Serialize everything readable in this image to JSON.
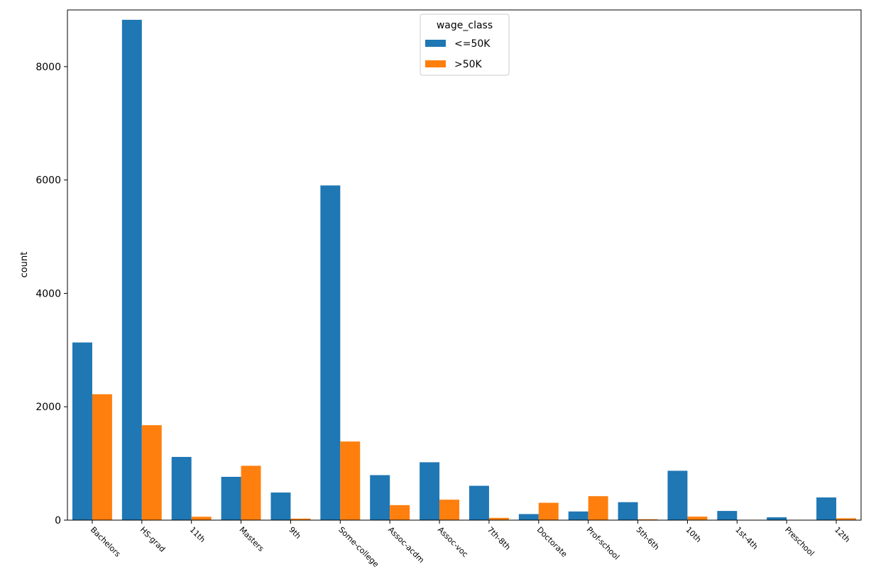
{
  "chart_data": {
    "type": "bar",
    "xlabel": "",
    "ylabel": "count",
    "ylim": [
      0,
      9000
    ],
    "yticks": [
      0,
      2000,
      4000,
      6000,
      8000
    ],
    "grid": false,
    "legend": {
      "title": "wage_class",
      "placement": "top-center"
    },
    "categories": [
      "Bachelors",
      "HS-grad",
      "11th",
      "Masters",
      "9th",
      "Some-college",
      "Assoc-acdm",
      "Assoc-voc",
      "7th-8th",
      "Doctorate",
      "Prof-school",
      "5th-6th",
      "10th",
      "1st-4th",
      "Preschool",
      "12th"
    ],
    "series": [
      {
        "name": "<=50K",
        "color": "#1f77b4",
        "values": [
          3134,
          8826,
          1115,
          764,
          487,
          5904,
          794,
          1021,
          606,
          107,
          153,
          317,
          871,
          162,
          51,
          400
        ]
      },
      {
        "name": ">50K",
        "color": "#ff7f0e",
        "values": [
          2221,
          1675,
          60,
          959,
          27,
          1387,
          265,
          361,
          40,
          306,
          423,
          16,
          62,
          6,
          0,
          33
        ]
      }
    ]
  }
}
